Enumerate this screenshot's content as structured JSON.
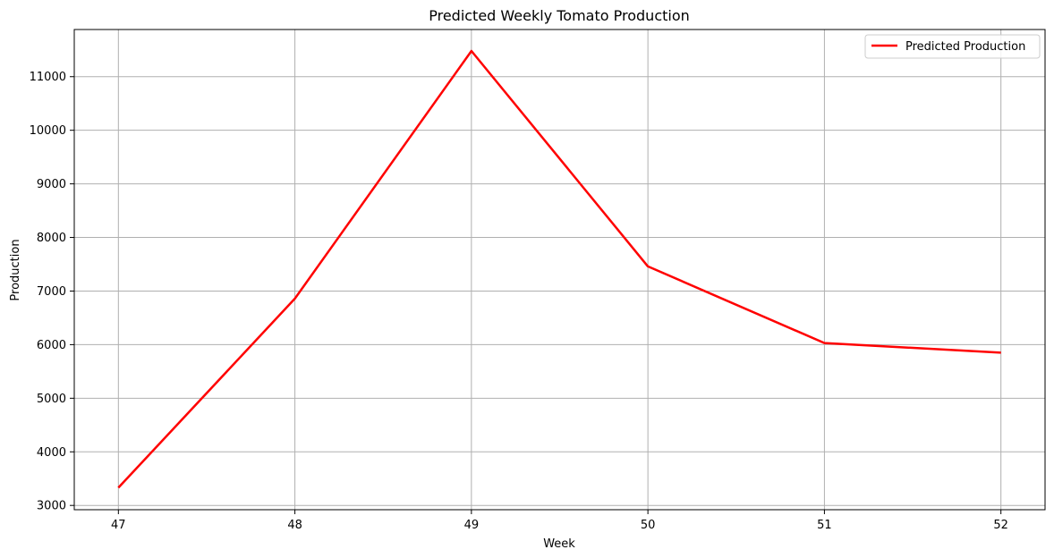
{
  "chart_data": {
    "type": "line",
    "title": "Predicted Weekly Tomato Production",
    "xlabel": "Week",
    "ylabel": "Production",
    "x": [
      47,
      48,
      49,
      50,
      51,
      52
    ],
    "series": [
      {
        "name": "Predicted Production",
        "values": [
          3330,
          6860,
          11480,
          7460,
          6030,
          5850
        ],
        "color": "#ff0000"
      }
    ],
    "xlim": [
      46.75,
      52.25
    ],
    "ylim": [
      2920,
      11880
    ],
    "xticks": [
      "47",
      "48",
      "49",
      "50",
      "51",
      "52"
    ],
    "yticks": [
      "3000",
      "4000",
      "5000",
      "6000",
      "7000",
      "8000",
      "9000",
      "10000",
      "11000"
    ],
    "grid": true,
    "legend": "top-right"
  }
}
